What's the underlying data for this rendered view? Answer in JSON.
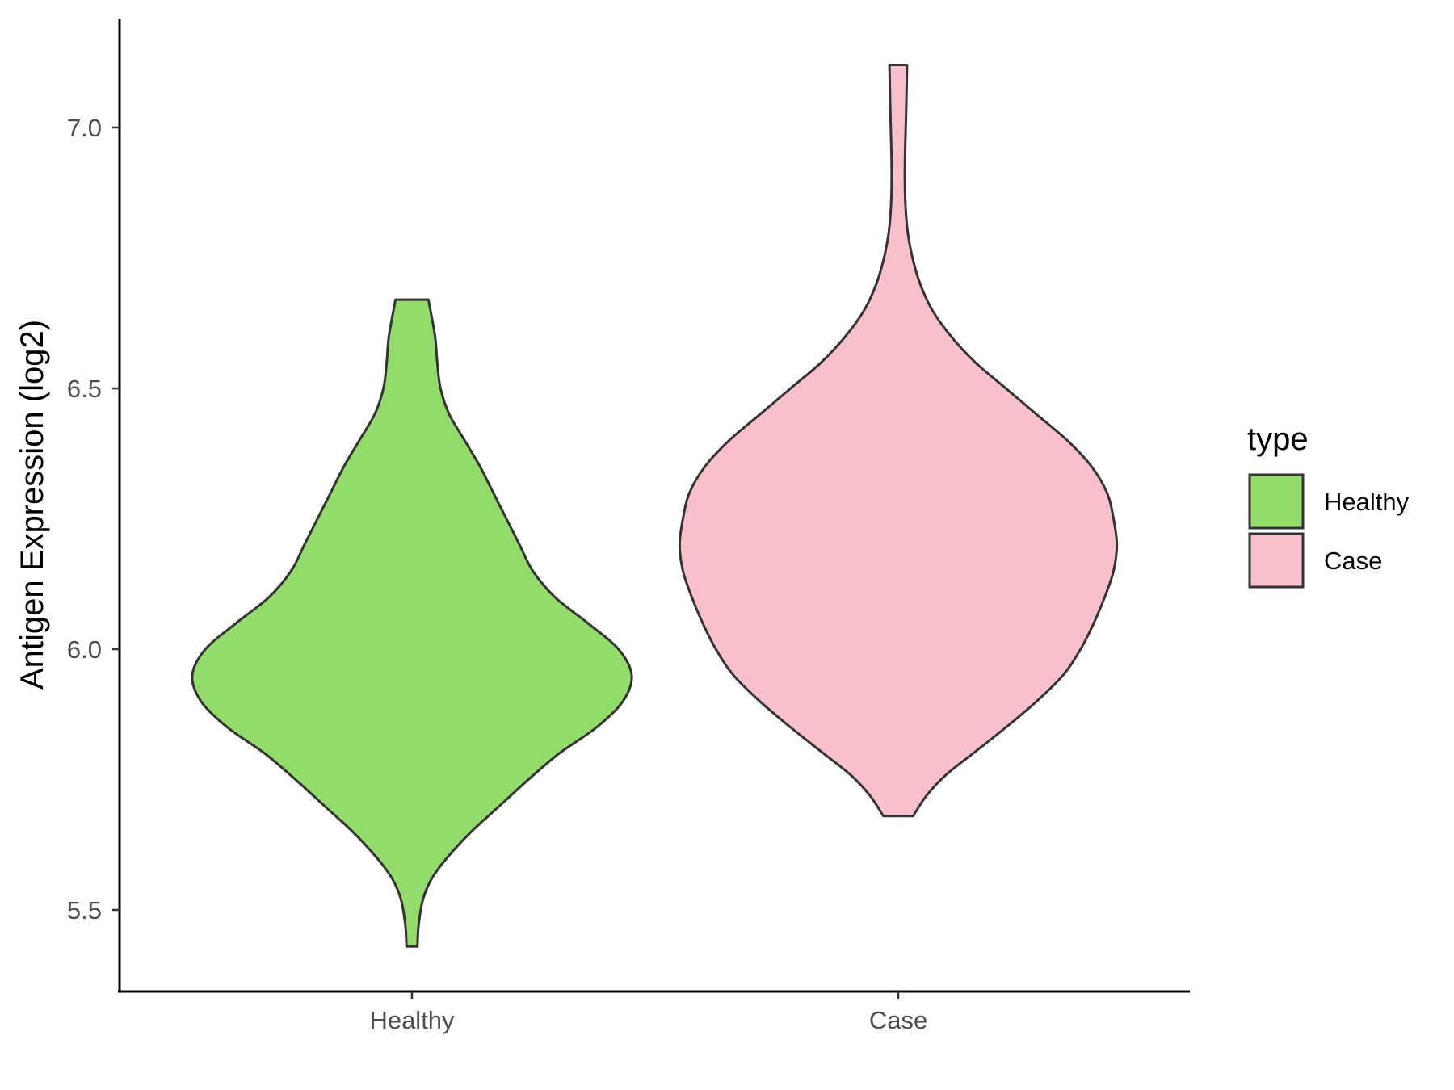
{
  "chart_data": {
    "type": "violin",
    "title": "",
    "xlabel": "",
    "ylabel": "Antigen Expression (log2)",
    "ylim": [
      5.35,
      7.22
    ],
    "y_ticks": [
      5.5,
      6.0,
      6.5,
      7.0
    ],
    "y_tick_labels": [
      "5.5",
      "6.0",
      "6.5",
      "7.0"
    ],
    "categories": [
      "Healthy",
      "Case"
    ],
    "grid": false,
    "legend": {
      "title": "type",
      "placement": "right",
      "entries": [
        "Healthy",
        "Case"
      ]
    },
    "series": [
      {
        "name": "Healthy",
        "color": "#93dc6b",
        "min": 5.43,
        "max": 6.67,
        "density_profile": [
          {
            "y": 5.43,
            "w": 0.025
          },
          {
            "y": 5.47,
            "w": 0.03
          },
          {
            "y": 5.52,
            "w": 0.05
          },
          {
            "y": 5.56,
            "w": 0.09
          },
          {
            "y": 5.6,
            "w": 0.16
          },
          {
            "y": 5.65,
            "w": 0.27
          },
          {
            "y": 5.7,
            "w": 0.4
          },
          {
            "y": 5.75,
            "w": 0.53
          },
          {
            "y": 5.8,
            "w": 0.67
          },
          {
            "y": 5.85,
            "w": 0.84
          },
          {
            "y": 5.9,
            "w": 0.96
          },
          {
            "y": 5.95,
            "w": 1.0
          },
          {
            "y": 6.0,
            "w": 0.94
          },
          {
            "y": 6.05,
            "w": 0.8
          },
          {
            "y": 6.1,
            "w": 0.65
          },
          {
            "y": 6.15,
            "w": 0.55
          },
          {
            "y": 6.2,
            "w": 0.49
          },
          {
            "y": 6.25,
            "w": 0.43
          },
          {
            "y": 6.3,
            "w": 0.37
          },
          {
            "y": 6.35,
            "w": 0.31
          },
          {
            "y": 6.4,
            "w": 0.24
          },
          {
            "y": 6.45,
            "w": 0.17
          },
          {
            "y": 6.5,
            "w": 0.13
          },
          {
            "y": 6.55,
            "w": 0.115
          },
          {
            "y": 6.6,
            "w": 0.105
          },
          {
            "y": 6.67,
            "w": 0.075
          }
        ]
      },
      {
        "name": "Case",
        "color": "#f8c0cb",
        "min": 5.68,
        "max": 7.12,
        "density_profile": [
          {
            "y": 5.68,
            "w": 0.068
          },
          {
            "y": 5.72,
            "w": 0.13
          },
          {
            "y": 5.76,
            "w": 0.22
          },
          {
            "y": 5.8,
            "w": 0.34
          },
          {
            "y": 5.85,
            "w": 0.49
          },
          {
            "y": 5.9,
            "w": 0.63
          },
          {
            "y": 5.95,
            "w": 0.75
          },
          {
            "y": 6.0,
            "w": 0.83
          },
          {
            "y": 6.05,
            "w": 0.89
          },
          {
            "y": 6.1,
            "w": 0.94
          },
          {
            "y": 6.15,
            "w": 0.98
          },
          {
            "y": 6.2,
            "w": 0.995
          },
          {
            "y": 6.25,
            "w": 0.98
          },
          {
            "y": 6.3,
            "w": 0.95
          },
          {
            "y": 6.35,
            "w": 0.88
          },
          {
            "y": 6.4,
            "w": 0.77
          },
          {
            "y": 6.45,
            "w": 0.63
          },
          {
            "y": 6.5,
            "w": 0.49
          },
          {
            "y": 6.55,
            "w": 0.35
          },
          {
            "y": 6.6,
            "w": 0.24
          },
          {
            "y": 6.65,
            "w": 0.155
          },
          {
            "y": 6.7,
            "w": 0.1
          },
          {
            "y": 6.75,
            "w": 0.065
          },
          {
            "y": 6.8,
            "w": 0.043
          },
          {
            "y": 6.85,
            "w": 0.033
          },
          {
            "y": 6.9,
            "w": 0.03
          },
          {
            "y": 6.95,
            "w": 0.031
          },
          {
            "y": 7.0,
            "w": 0.034
          },
          {
            "y": 7.05,
            "w": 0.037
          },
          {
            "y": 7.12,
            "w": 0.04
          }
        ]
      }
    ]
  }
}
